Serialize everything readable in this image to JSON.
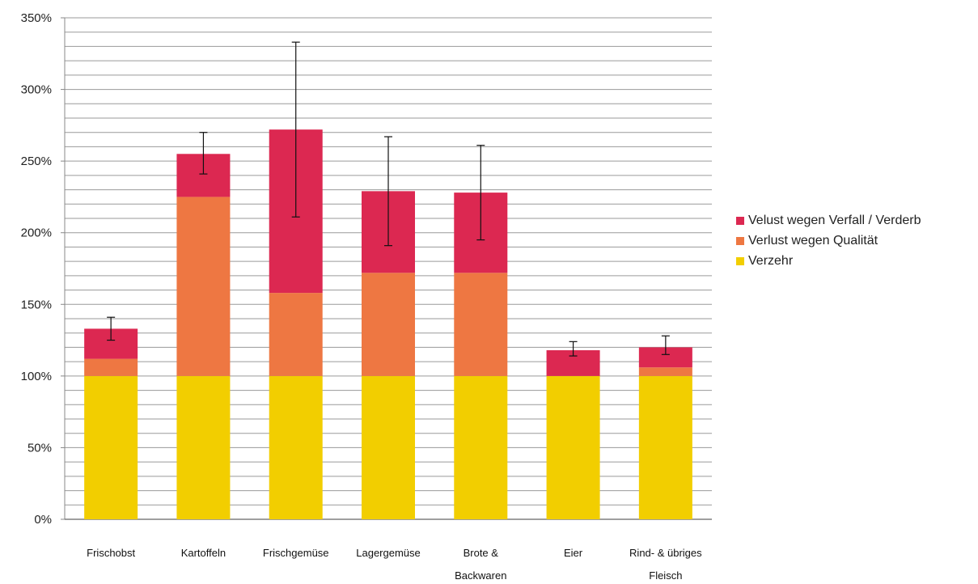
{
  "chart_data": {
    "type": "bar",
    "stacked": true,
    "categories": [
      [
        "Frischobst"
      ],
      [
        "Kartoffeln"
      ],
      [
        "Frischgemüse"
      ],
      [
        "Lagergemüse"
      ],
      [
        "Brote &",
        "Backwaren"
      ],
      [
        "Eier"
      ],
      [
        "Rind- & übriges",
        "Fleisch"
      ]
    ],
    "series": [
      {
        "name": "Verzehr",
        "color": "#F2CE00",
        "values": [
          100,
          100,
          100,
          100,
          100,
          100,
          100
        ]
      },
      {
        "name": "Verlust wegen Qualität",
        "color": "#EE7742",
        "values": [
          12,
          125,
          58,
          72,
          72,
          0,
          6
        ]
      },
      {
        "name": "Velust wegen Verfall / Verderb",
        "color": "#DC2851",
        "values": [
          21,
          30,
          114,
          57,
          56,
          18,
          14
        ]
      }
    ],
    "error_bars": {
      "low": [
        125,
        241,
        211,
        191,
        195,
        114,
        115
      ],
      "high": [
        141,
        270,
        333,
        267,
        261,
        124,
        128
      ]
    },
    "yticks": [
      "0%",
      "50%",
      "100%",
      "150%",
      "200%",
      "250%",
      "300%",
      "350%"
    ],
    "ylim": [
      0,
      350
    ],
    "minor_grid_step": 10,
    "grid": true,
    "legend_position": "right",
    "legend_order": [
      2,
      1,
      0
    ],
    "title": "",
    "xlabel": "",
    "ylabel": ""
  }
}
